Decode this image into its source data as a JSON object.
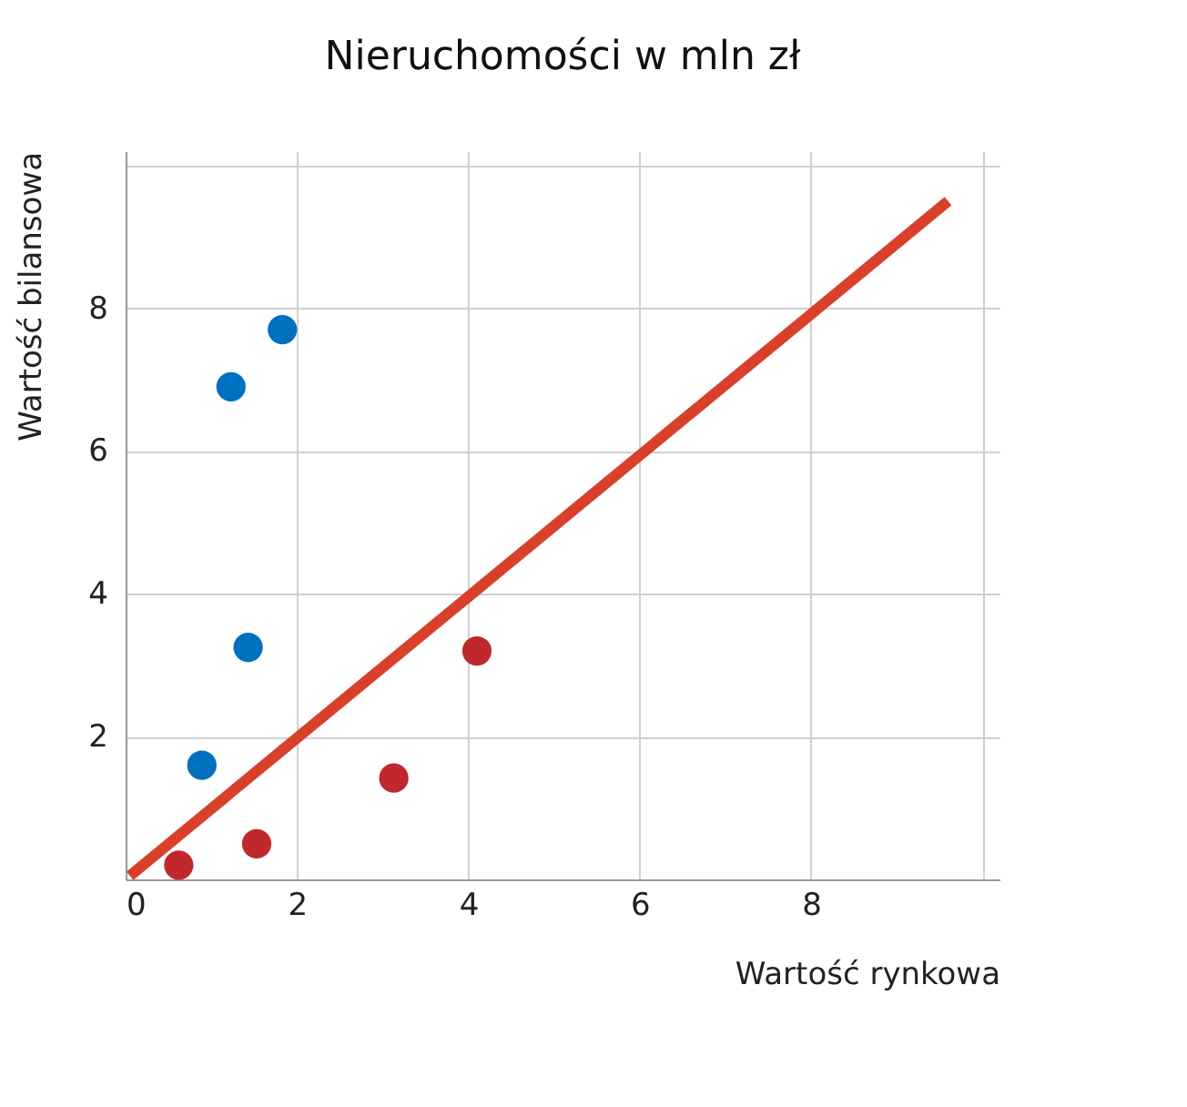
{
  "chart_data": {
    "type": "scatter",
    "title": "Nieruchomości w mln zł",
    "xlabel": "Wartość rynkowa",
    "ylabel": "Wartość bilansowa",
    "xlim": [
      0,
      10.2
    ],
    "ylim": [
      0,
      10.2
    ],
    "xticks": [
      0,
      2,
      4,
      6,
      8,
      {
        "value": 10,
        "label": null
      }
    ],
    "yticks": [
      2,
      4,
      6,
      8,
      {
        "value": 10,
        "label": null
      }
    ],
    "grid": true,
    "marker": "circle",
    "series": [
      {
        "color": "#0070c0",
        "x": [
          0.89,
          1.43,
          1.23,
          1.83
        ],
        "values": [
          1.6,
          3.25,
          6.9,
          7.7
        ]
      },
      {
        "color": "#c0282d",
        "x": [
          0.62,
          1.53,
          3.13,
          4.1
        ],
        "values": [
          0.2,
          0.5,
          1.42,
          3.2
        ]
      },
      {
        "type": "line",
        "marker": "none",
        "color": "#d9402a",
        "x": [
          0.05,
          9.6
        ],
        "values": [
          0.05,
          9.5
        ]
      }
    ]
  }
}
